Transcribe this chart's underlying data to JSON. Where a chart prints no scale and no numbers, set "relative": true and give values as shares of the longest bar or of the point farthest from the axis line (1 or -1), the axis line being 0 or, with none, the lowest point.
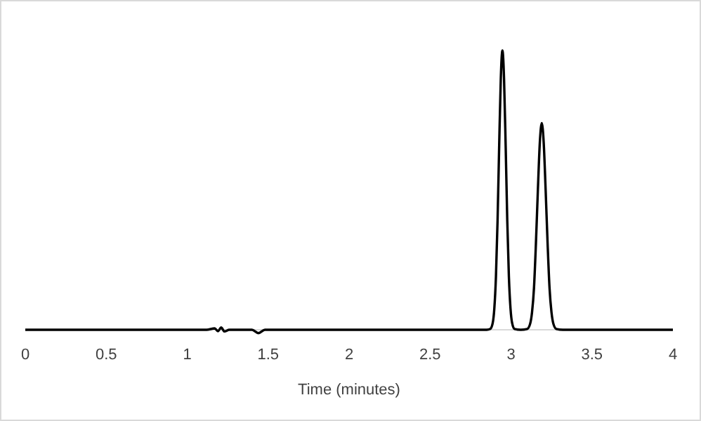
{
  "chart_data": {
    "type": "line",
    "relative": true,
    "xlabel": "Time (minutes)",
    "xlim": [
      0,
      4
    ],
    "xticks": [
      0,
      0.5,
      1,
      1.5,
      2,
      2.5,
      3,
      3.5,
      4
    ],
    "grid": false,
    "marker": "none",
    "line_style": "solid",
    "series": [
      {
        "color": "#000000",
        "x": [
          0,
          1.12,
          1.17,
          1.19,
          1.21,
          1.23,
          1.26,
          1.4,
          1.44,
          1.48,
          2.8,
          2.85,
          2.872,
          2.887,
          2.897,
          2.907,
          2.917,
          2.927,
          2.937,
          2.947,
          2.957,
          2.967,
          2.977,
          2.987,
          2.997,
          3.007,
          3.022,
          3.06,
          3.1,
          3.118,
          3.13,
          3.142,
          3.154,
          3.166,
          3.178,
          3.19,
          3.202,
          3.214,
          3.226,
          3.238,
          3.25,
          3.262,
          3.28,
          3.32,
          4
        ],
        "values": [
          0,
          0,
          0.005,
          -0.005,
          0.008,
          -0.006,
          0,
          0,
          -0.012,
          0,
          0,
          0,
          0.003,
          0.024,
          0.076,
          0.19,
          0.39,
          0.66,
          0.9,
          1,
          0.9,
          0.66,
          0.39,
          0.19,
          0.076,
          0.024,
          0.003,
          0,
          0.003,
          0.021,
          0.063,
          0.15,
          0.31,
          0.5,
          0.67,
          0.74,
          0.67,
          0.5,
          0.31,
          0.15,
          0.063,
          0.021,
          0.003,
          0,
          0
        ]
      }
    ]
  }
}
